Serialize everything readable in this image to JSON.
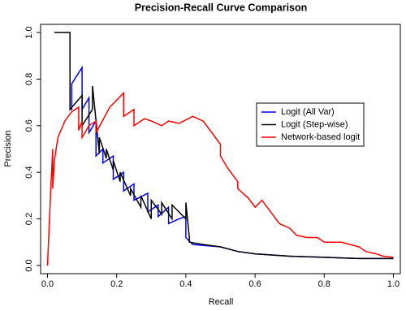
{
  "chart_data": {
    "type": "line",
    "title": "Precision-Recall Curve Comparison",
    "x_label": "Recall",
    "y_label": "Precision",
    "xlim": [
      -0.02,
      1.02
    ],
    "ylim": [
      -0.035,
      1.035
    ],
    "xticks": [
      {
        "value": 0,
        "label": "0.0"
      },
      {
        "value": 0.2,
        "label": "0.2"
      },
      {
        "value": 0.4,
        "label": "0.4"
      },
      {
        "value": 0.6,
        "label": "0.6"
      },
      {
        "value": 0.8,
        "label": "0.8"
      },
      {
        "value": 1,
        "label": "1.0"
      }
    ],
    "yticks": [
      {
        "value": 0,
        "label": "0.0"
      },
      {
        "value": 0.2,
        "label": "0.2"
      },
      {
        "value": 0.4,
        "label": "0.4"
      },
      {
        "value": 0.6,
        "label": "0.6"
      },
      {
        "value": 0.8,
        "label": "0.8"
      },
      {
        "value": 1,
        "label": "1.0"
      }
    ],
    "legend_position": "right",
    "series": [
      {
        "name": "Logit (All Var)",
        "color": "#0000ff",
        "x": [
          0.065,
          0.07,
          0.07,
          0.1,
          0.1,
          0.12,
          0.12,
          0.14,
          0.14,
          0.16,
          0.16,
          0.19,
          0.19,
          0.22,
          0.22,
          0.25,
          0.25,
          0.29,
          0.29,
          0.32,
          0.32,
          0.35,
          0.35,
          0.38,
          0.38,
          0.4,
          0.4,
          0.42,
          0.42,
          0.5,
          0.55,
          0.6,
          0.7,
          0.8,
          0.9,
          1.0
        ],
        "values": [
          0.67,
          0.67,
          0.78,
          0.85,
          0.67,
          0.72,
          0.57,
          0.62,
          0.47,
          0.5,
          0.44,
          0.47,
          0.37,
          0.4,
          0.32,
          0.35,
          0.28,
          0.31,
          0.23,
          0.26,
          0.21,
          0.25,
          0.18,
          0.2,
          0.2,
          0.21,
          0.12,
          0.09,
          0.09,
          0.08,
          0.06,
          0.05,
          0.04,
          0.035,
          0.03,
          0.03
        ]
      },
      {
        "name": "Logit (Step-wise)",
        "color": "#000000",
        "x": [
          0.02,
          0.065,
          0.065,
          0.1,
          0.1,
          0.13,
          0.13,
          0.15,
          0.15,
          0.17,
          0.17,
          0.19,
          0.19,
          0.21,
          0.21,
          0.24,
          0.24,
          0.27,
          0.27,
          0.3,
          0.3,
          0.33,
          0.33,
          0.36,
          0.36,
          0.4,
          0.4,
          0.41,
          0.41,
          0.45,
          0.5,
          0.55,
          0.6,
          0.7,
          0.8,
          0.9,
          1.0
        ],
        "values": [
          1.0,
          1.0,
          0.67,
          0.73,
          0.6,
          0.67,
          0.77,
          0.48,
          0.55,
          0.46,
          0.5,
          0.41,
          0.45,
          0.36,
          0.4,
          0.3,
          0.33,
          0.25,
          0.3,
          0.2,
          0.28,
          0.22,
          0.27,
          0.2,
          0.26,
          0.2,
          0.27,
          0.12,
          0.1,
          0.09,
          0.08,
          0.06,
          0.05,
          0.04,
          0.035,
          0.03,
          0.03
        ]
      },
      {
        "name": "Network-based logit",
        "color": "#ff0000",
        "x": [
          0.0,
          0.01,
          0.015,
          0.015,
          0.02,
          0.03,
          0.05,
          0.07,
          0.09,
          0.09,
          0.1,
          0.1,
          0.12,
          0.14,
          0.14,
          0.18,
          0.22,
          0.22,
          0.25,
          0.25,
          0.28,
          0.3,
          0.33,
          0.35,
          0.38,
          0.42,
          0.45,
          0.47,
          0.5,
          0.5,
          0.52,
          0.55,
          0.55,
          0.58,
          0.6,
          0.62,
          0.65,
          0.67,
          0.7,
          0.72,
          0.75,
          0.78,
          0.8,
          0.83,
          0.85,
          0.9,
          0.92,
          0.95,
          0.97,
          1.0
        ],
        "values": [
          0.0,
          0.35,
          0.5,
          0.33,
          0.45,
          0.55,
          0.62,
          0.66,
          0.68,
          0.58,
          0.62,
          0.55,
          0.6,
          0.62,
          0.57,
          0.68,
          0.74,
          0.64,
          0.67,
          0.6,
          0.63,
          0.62,
          0.6,
          0.62,
          0.61,
          0.64,
          0.62,
          0.58,
          0.52,
          0.47,
          0.42,
          0.36,
          0.33,
          0.29,
          0.25,
          0.28,
          0.22,
          0.18,
          0.16,
          0.13,
          0.12,
          0.12,
          0.1,
          0.1,
          0.1,
          0.08,
          0.06,
          0.05,
          0.04,
          0.035
        ]
      }
    ]
  }
}
